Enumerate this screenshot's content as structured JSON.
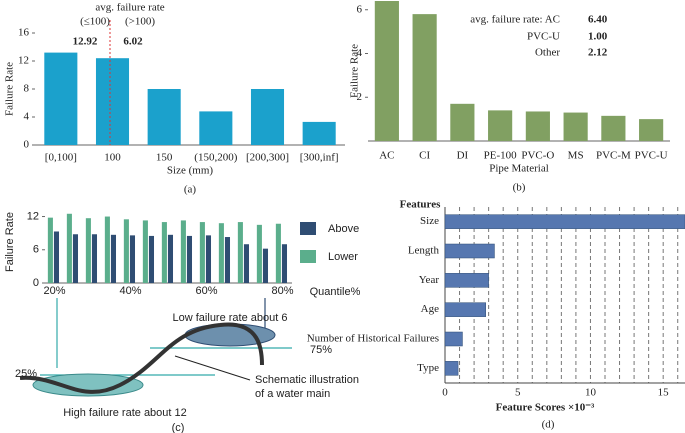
{
  "chart_data": [
    {
      "type": "bar",
      "caption": "(a)",
      "y_label": "Failure Rate",
      "x_label": "Size (mm)",
      "categories": [
        "[0,100]",
        "100",
        "150",
        "(150,200)",
        "[200,300]",
        "[300,inf]"
      ],
      "values": [
        13.2,
        12.4,
        8.0,
        4.8,
        8.0,
        3.3
      ],
      "color": "#1ba1cc",
      "ylim": [
        0,
        16
      ],
      "yticks": [
        0,
        4,
        8,
        12,
        16
      ],
      "annotations": [
        "avg. failure rate",
        "(≤100)",
        "(>100)",
        "12.92",
        "6.02"
      ]
    },
    {
      "type": "bar",
      "caption": "(b)",
      "y_label": "Failure Rate",
      "x_label": "Pipe Material",
      "categories": [
        "AC",
        "CI",
        "DI",
        "PE-100",
        "PVC-O",
        "MS",
        "PVC-M",
        "PVC-U"
      ],
      "values": [
        6.4,
        5.8,
        1.7,
        1.4,
        1.35,
        1.3,
        1.15,
        1.0
      ],
      "color": "#81a062",
      "ylim": [
        0,
        6.4
      ],
      "yticks": [
        2,
        4,
        6
      ],
      "annotations": [
        "avg. failure rate: AC",
        "6.40",
        "PVC-U",
        "1.00",
        "Other",
        "2.12"
      ]
    },
    {
      "type": "grouped_bar",
      "caption": "(c)",
      "y_label": "Failure Rate",
      "x_label": "Quantile%",
      "categories": [
        "20%",
        null,
        null,
        null,
        "40%",
        null,
        null,
        null,
        "60%",
        null,
        null,
        null,
        "80%"
      ],
      "series": [
        {
          "name": "Above",
          "color": "#2f4d73",
          "values": [
            9.3,
            8.8,
            8.8,
            8.7,
            8.6,
            8.5,
            8.7,
            8.5,
            8.6,
            8.3,
            7.0,
            6.2,
            7.0
          ]
        },
        {
          "name": "Lower",
          "color": "#5bae8c",
          "values": [
            11.8,
            12.5,
            11.7,
            12.0,
            11.5,
            11.3,
            11.0,
            11.3,
            11.0,
            10.8,
            11.0,
            10.5,
            10.7
          ]
        }
      ],
      "ylim": [
        0,
        13
      ],
      "yticks": [
        0,
        6,
        12
      ],
      "annotations": [
        "Low failure rate about 6",
        "75%",
        "25%",
        "Schematic illustration",
        "of a water main",
        "High failure rate about 12"
      ]
    },
    {
      "type": "hbar",
      "title": "Features",
      "caption": "(d)",
      "x_label": "Feature Scores ×10⁻³",
      "categories": [
        "Size",
        "Length",
        "Year",
        "Age",
        "Number of Historical Failures",
        "Type"
      ],
      "values": [
        16.5,
        3.4,
        3.0,
        2.8,
        1.2,
        0.9
      ],
      "color": "#5677b0",
      "xlim": [
        0,
        16.5
      ],
      "xticks": [
        0,
        5,
        10,
        15
      ],
      "minor_xticks": [
        1,
        2,
        3,
        4,
        6,
        7,
        8,
        9,
        11,
        12,
        13,
        14,
        16
      ]
    }
  ]
}
